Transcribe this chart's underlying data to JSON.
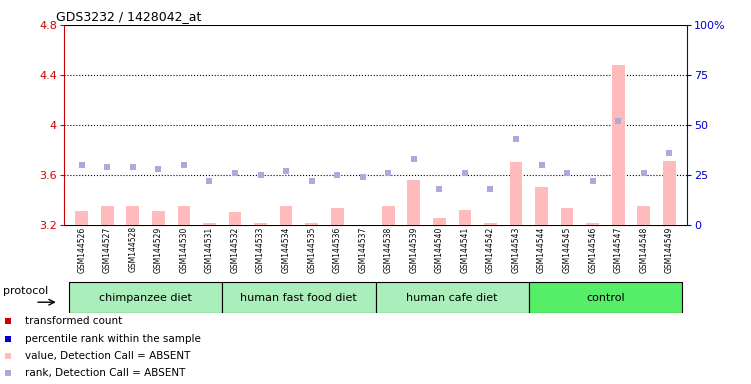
{
  "title": "GDS3232 / 1428042_at",
  "samples": [
    "GSM144526",
    "GSM144527",
    "GSM144528",
    "GSM144529",
    "GSM144530",
    "GSM144531",
    "GSM144532",
    "GSM144533",
    "GSM144534",
    "GSM144535",
    "GSM144536",
    "GSM144537",
    "GSM144538",
    "GSM144539",
    "GSM144540",
    "GSM144541",
    "GSM144542",
    "GSM144543",
    "GSM144544",
    "GSM144545",
    "GSM144546",
    "GSM144547",
    "GSM144548",
    "GSM144549"
  ],
  "bar_values": [
    3.31,
    3.35,
    3.35,
    3.31,
    3.35,
    3.21,
    3.3,
    3.21,
    3.35,
    3.21,
    3.33,
    3.2,
    3.35,
    3.56,
    3.25,
    3.32,
    3.21,
    3.7,
    3.5,
    3.33,
    3.21,
    4.48,
    3.35,
    3.71
  ],
  "rank_pct": [
    30,
    29,
    29,
    28,
    30,
    22,
    26,
    25,
    27,
    22,
    25,
    24,
    26,
    33,
    18,
    26,
    18,
    43,
    30,
    26,
    22,
    52,
    26,
    36
  ],
  "groups": [
    {
      "label": "chimpanzee diet",
      "start": 0,
      "end": 5,
      "color": "#aaeebb"
    },
    {
      "label": "human fast food diet",
      "start": 6,
      "end": 11,
      "color": "#aaeebb"
    },
    {
      "label": "human cafe diet",
      "start": 12,
      "end": 17,
      "color": "#aaeebb"
    },
    {
      "label": "control",
      "start": 18,
      "end": 23,
      "color": "#55ee66"
    }
  ],
  "bar_absent_color": "#ffbbbb",
  "rank_absent_color": "#aaaadd",
  "ylim_left": [
    3.2,
    4.8
  ],
  "ylim_right": [
    0,
    100
  ],
  "yticks_left": [
    3.2,
    3.6,
    4.0,
    4.4,
    4.8
  ],
  "ytick_labels_left": [
    "3.2",
    "3.6",
    "4",
    "4.4",
    "4.8"
  ],
  "yticks_right": [
    0,
    25,
    50,
    75,
    100
  ],
  "ytick_labels_right": [
    "0",
    "25",
    "50",
    "75",
    "100%"
  ],
  "grid_values": [
    3.6,
    4.0,
    4.4
  ],
  "left_color": "#cc0000",
  "right_color": "#0000cc",
  "legend_items": [
    {
      "color": "#cc0000",
      "label": "transformed count"
    },
    {
      "color": "#0000cc",
      "label": "percentile rank within the sample"
    },
    {
      "color": "#ffbbbb",
      "label": "value, Detection Call = ABSENT"
    },
    {
      "color": "#aaaadd",
      "label": "rank, Detection Call = ABSENT"
    }
  ]
}
